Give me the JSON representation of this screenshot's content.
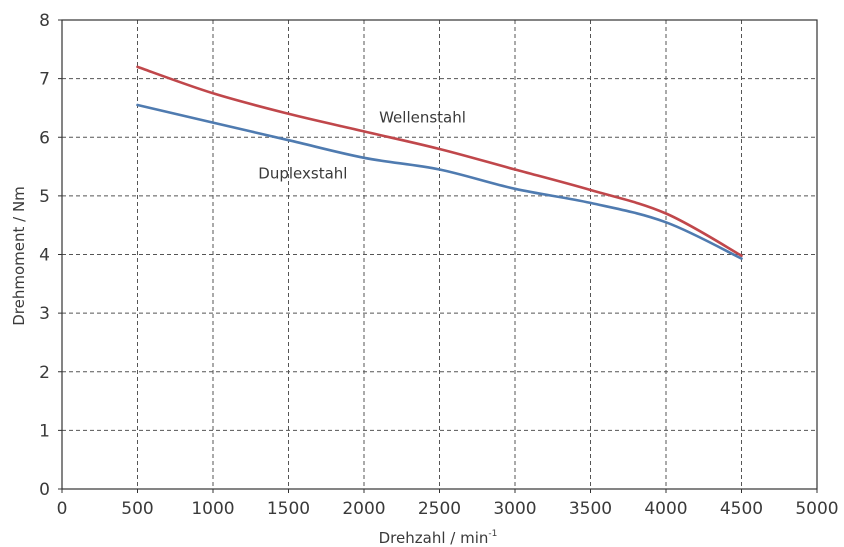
{
  "chart_data": {
    "type": "line",
    "title": "",
    "xlabel": "Drehzahl / min",
    "xlabel_superscript": "-1",
    "ylabel": "Drehmoment / Nm",
    "xlim": [
      0,
      5000
    ],
    "ylim": [
      0,
      8
    ],
    "x_ticks": [
      "0",
      "500",
      "1000",
      "1500",
      "2000",
      "2500",
      "3000",
      "3500",
      "4000",
      "4500",
      "5000"
    ],
    "y_ticks": [
      "0",
      "1",
      "2",
      "3",
      "4",
      "5",
      "6",
      "7",
      "8"
    ],
    "grid": true,
    "legend": "none (series labelled directly on plot)",
    "series": [
      {
        "name": "Wellenstahl",
        "color": "#c0474b",
        "x": [
          500,
          1000,
          1500,
          2000,
          2500,
          3000,
          3500,
          4000,
          4500
        ],
        "y": [
          7.2,
          6.75,
          6.4,
          6.1,
          5.8,
          5.45,
          5.1,
          4.7,
          3.98
        ]
      },
      {
        "name": "Duplexstahl",
        "color": "#4f7bb0",
        "x": [
          500,
          1000,
          1500,
          2000,
          2500,
          3000,
          3500,
          4000,
          4500
        ],
        "y": [
          6.55,
          6.25,
          5.95,
          5.65,
          5.45,
          5.12,
          4.88,
          4.55,
          3.93
        ]
      }
    ]
  }
}
